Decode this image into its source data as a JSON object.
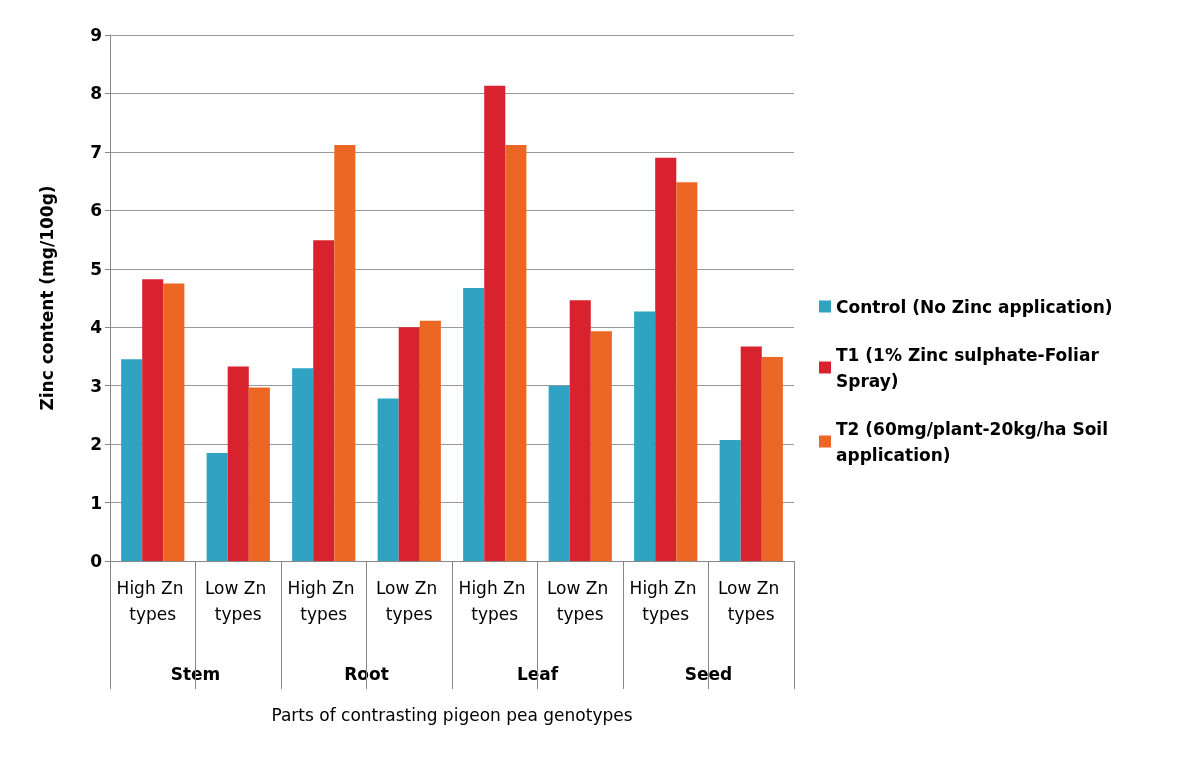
{
  "chart_data": {
    "type": "bar",
    "xlabel": "Parts of contrasting pigeon pea genotypes",
    "ylabel": "Zinc content (mg/100g)",
    "categories": [
      "High Zn types",
      "Low Zn types",
      "High Zn types",
      "Low Zn types",
      "High Zn types",
      "Low Zn types",
      "High Zn types",
      "Low Zn types"
    ],
    "annotations": [
      "Stem",
      "Root",
      "Leaf",
      "Seed"
    ],
    "series": [
      {
        "name": "Control (No Zinc application)",
        "color": "#2fa3c1",
        "values": [
          3.45,
          1.85,
          3.3,
          2.78,
          4.67,
          3.0,
          4.27,
          2.07
        ]
      },
      {
        "name": "T1 (1% Zinc sulphate-Foliar Spray)",
        "color": "#d8232e",
        "values": [
          4.82,
          3.33,
          5.49,
          4.0,
          8.13,
          4.46,
          6.9,
          3.67
        ]
      },
      {
        "name": "T2 (60mg/plant-20kg/ha Soil application)",
        "color": "#ec6624",
        "values": [
          4.75,
          2.97,
          7.12,
          4.11,
          7.12,
          3.93,
          6.48,
          3.49
        ]
      }
    ],
    "ylim": [
      0,
      9
    ],
    "yticks": [
      0,
      1,
      2,
      3,
      4,
      5,
      6,
      7,
      8,
      9
    ],
    "grid": "y",
    "legend": "right"
  }
}
